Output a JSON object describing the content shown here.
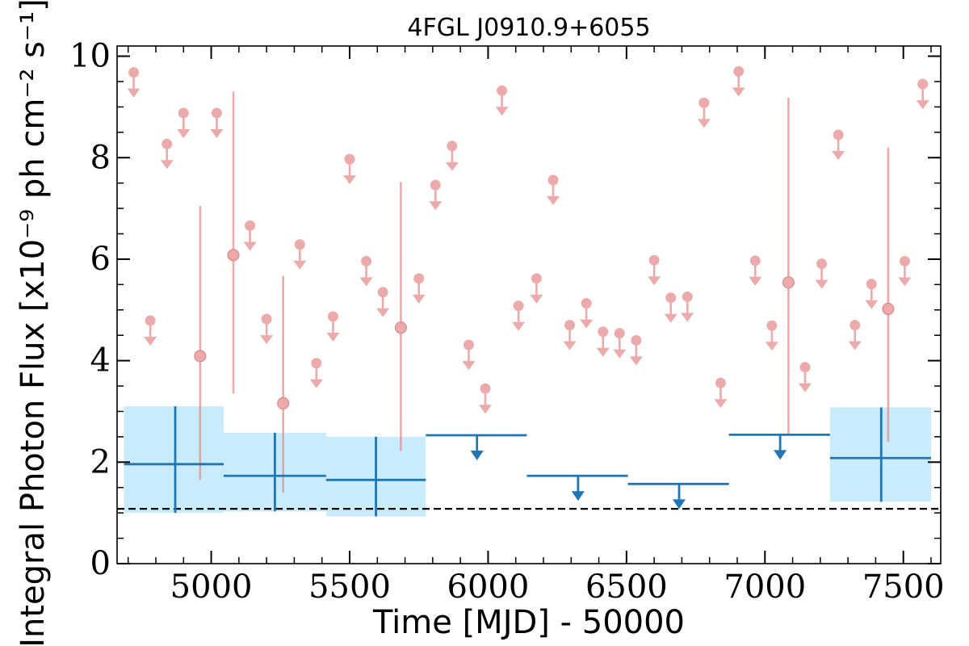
{
  "chart_data": {
    "type": "scatter",
    "title": "4FGL J0910.9+6055",
    "xlabel": "Time [MJD] - 50000",
    "ylabel": "Integral Photon Flux [x10⁻⁹ ph cm⁻² s⁻¹]",
    "xlim": [
      4660,
      7635
    ],
    "ylim": [
      0,
      10.2
    ],
    "xticks": [
      5000,
      5500,
      6000,
      6500,
      7000,
      7500
    ],
    "yticks": [
      0,
      2,
      4,
      6,
      8,
      10
    ],
    "grid": false,
    "colors": {
      "short_bins": "#e58a8a",
      "long_bins": "#1f77b4",
      "long_band": "#c9ecfc",
      "reference_line": "#000000"
    },
    "reference_line": {
      "y": 1.08,
      "style": "dashed"
    },
    "series": [
      {
        "points": [
          {
            "x": 4870,
            "x_lo": 4685,
            "x_hi": 5045,
            "y": 1.96,
            "y_lo": 1.0,
            "y_hi": 3.1,
            "upper_limit": false
          },
          {
            "x": 5230,
            "x_lo": 5045,
            "x_hi": 5415,
            "y": 1.73,
            "y_lo": 1.03,
            "y_hi": 2.58,
            "upper_limit": false
          },
          {
            "x": 5595,
            "x_lo": 5415,
            "x_hi": 5775,
            "y": 1.65,
            "y_lo": 0.93,
            "y_hi": 2.5,
            "upper_limit": false
          },
          {
            "x": 5960,
            "x_lo": 5775,
            "x_hi": 6140,
            "y": 2.53,
            "upper_limit": true
          },
          {
            "x": 6325,
            "x_lo": 6140,
            "x_hi": 6505,
            "y": 1.73,
            "upper_limit": true
          },
          {
            "x": 6690,
            "x_lo": 6505,
            "x_hi": 6870,
            "y": 1.57,
            "upper_limit": true
          },
          {
            "x": 7055,
            "x_lo": 6870,
            "x_hi": 7235,
            "y": 2.54,
            "upper_limit": true
          },
          {
            "x": 7420,
            "x_lo": 7235,
            "x_hi": 7600,
            "y": 2.08,
            "y_lo": 1.22,
            "y_hi": 3.08,
            "upper_limit": false
          }
        ]
      },
      {
        "points": [
          {
            "x": 4720,
            "y": 9.68,
            "upper_limit": true
          },
          {
            "x": 4780,
            "y": 4.79,
            "upper_limit": true
          },
          {
            "x": 4840,
            "y": 8.27,
            "upper_limit": true
          },
          {
            "x": 4900,
            "y": 8.88,
            "upper_limit": true
          },
          {
            "x": 4960,
            "y": 4.09,
            "y_lo": 1.65,
            "y_hi": 7.05,
            "upper_limit": false
          },
          {
            "x": 5020,
            "y": 8.88,
            "upper_limit": true
          },
          {
            "x": 5080,
            "y": 6.08,
            "y_lo": 3.35,
            "y_hi": 9.3,
            "upper_limit": false
          },
          {
            "x": 5140,
            "y": 6.66,
            "upper_limit": true
          },
          {
            "x": 5200,
            "y": 4.82,
            "upper_limit": true
          },
          {
            "x": 5260,
            "y": 3.16,
            "y_lo": 1.4,
            "y_hi": 5.67,
            "upper_limit": false
          },
          {
            "x": 5320,
            "y": 6.29,
            "upper_limit": true
          },
          {
            "x": 5380,
            "y": 3.95,
            "upper_limit": true
          },
          {
            "x": 5440,
            "y": 4.87,
            "upper_limit": true
          },
          {
            "x": 5500,
            "y": 7.97,
            "upper_limit": true
          },
          {
            "x": 5560,
            "y": 5.96,
            "upper_limit": true
          },
          {
            "x": 5620,
            "y": 5.35,
            "upper_limit": true
          },
          {
            "x": 5685,
            "y": 4.65,
            "y_lo": 2.22,
            "y_hi": 7.52,
            "upper_limit": false
          },
          {
            "x": 5750,
            "y": 5.62,
            "upper_limit": true
          },
          {
            "x": 5810,
            "y": 7.46,
            "upper_limit": true
          },
          {
            "x": 5870,
            "y": 8.23,
            "upper_limit": true
          },
          {
            "x": 5930,
            "y": 4.31,
            "upper_limit": true
          },
          {
            "x": 5990,
            "y": 3.45,
            "upper_limit": true
          },
          {
            "x": 6050,
            "y": 9.32,
            "upper_limit": true
          },
          {
            "x": 6110,
            "y": 5.08,
            "upper_limit": true
          },
          {
            "x": 6175,
            "y": 5.62,
            "upper_limit": true
          },
          {
            "x": 6235,
            "y": 7.56,
            "upper_limit": true
          },
          {
            "x": 6295,
            "y": 4.7,
            "upper_limit": true
          },
          {
            "x": 6355,
            "y": 5.13,
            "upper_limit": true
          },
          {
            "x": 6415,
            "y": 4.57,
            "upper_limit": true
          },
          {
            "x": 6475,
            "y": 4.54,
            "upper_limit": true
          },
          {
            "x": 6535,
            "y": 4.4,
            "upper_limit": true
          },
          {
            "x": 6600,
            "y": 5.98,
            "upper_limit": true
          },
          {
            "x": 6660,
            "y": 5.24,
            "upper_limit": true
          },
          {
            "x": 6720,
            "y": 5.26,
            "upper_limit": true
          },
          {
            "x": 6780,
            "y": 9.08,
            "upper_limit": true
          },
          {
            "x": 6840,
            "y": 3.56,
            "upper_limit": true
          },
          {
            "x": 6905,
            "y": 9.7,
            "upper_limit": true
          },
          {
            "x": 6965,
            "y": 5.97,
            "upper_limit": true
          },
          {
            "x": 7025,
            "y": 4.69,
            "upper_limit": true
          },
          {
            "x": 7085,
            "y": 5.54,
            "y_lo": 2.56,
            "y_hi": 9.18,
            "upper_limit": false
          },
          {
            "x": 7145,
            "y": 3.87,
            "upper_limit": true
          },
          {
            "x": 7205,
            "y": 5.91,
            "upper_limit": true
          },
          {
            "x": 7265,
            "y": 8.45,
            "upper_limit": true
          },
          {
            "x": 7325,
            "y": 4.7,
            "upper_limit": true
          },
          {
            "x": 7385,
            "y": 5.51,
            "upper_limit": true
          },
          {
            "x": 7445,
            "y": 5.02,
            "y_lo": 2.4,
            "y_hi": 8.2,
            "upper_limit": false
          },
          {
            "x": 7505,
            "y": 5.96,
            "upper_limit": true
          },
          {
            "x": 7570,
            "y": 9.45,
            "upper_limit": true
          }
        ]
      }
    ]
  }
}
